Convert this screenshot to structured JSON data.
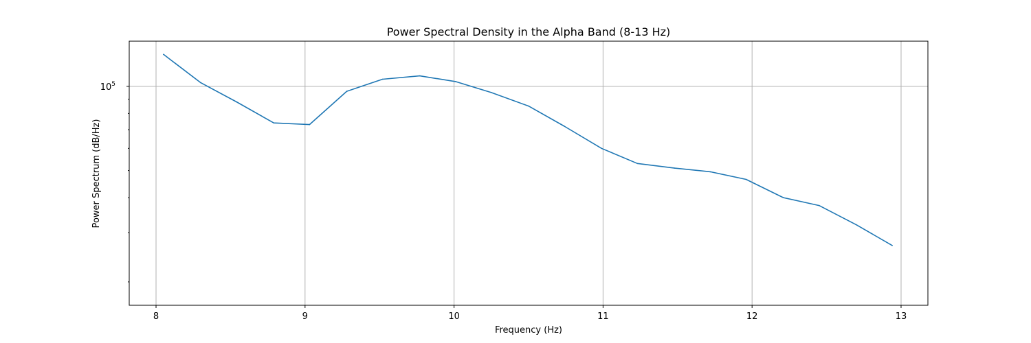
{
  "chart_data": {
    "type": "line",
    "title": "Power Spectral Density in the Alpha Band (8-13 Hz)",
    "xlabel": "Frequency (Hz)",
    "ylabel": "Power Spectrum (dB/Hz)",
    "xlim": [
      7.82,
      13.18
    ],
    "ylim": [
      16500,
      145000
    ],
    "yscale": "log",
    "grid": true,
    "x_ticks": [
      8,
      9,
      10,
      11,
      12,
      13
    ],
    "x_tick_labels": [
      "8",
      "9",
      "10",
      "11",
      "12",
      "13"
    ],
    "y_ticks": [
      100000
    ],
    "y_tick_labels": [
      "10",
      "5"
    ],
    "series": [
      {
        "color": "#1f77b4",
        "x": [
          8.05,
          8.3,
          8.54,
          8.79,
          9.03,
          9.28,
          9.52,
          9.77,
          10.01,
          10.25,
          10.5,
          10.74,
          10.99,
          11.23,
          11.48,
          11.72,
          11.96,
          12.21,
          12.45,
          12.7,
          12.94
        ],
        "y": [
          130000,
          103000,
          88000,
          74000,
          73000,
          96000,
          106000,
          109000,
          104000,
          95000,
          85000,
          72000,
          60000,
          53000,
          51000,
          49500,
          46500,
          40000,
          37500,
          32000,
          27000
        ]
      }
    ]
  }
}
